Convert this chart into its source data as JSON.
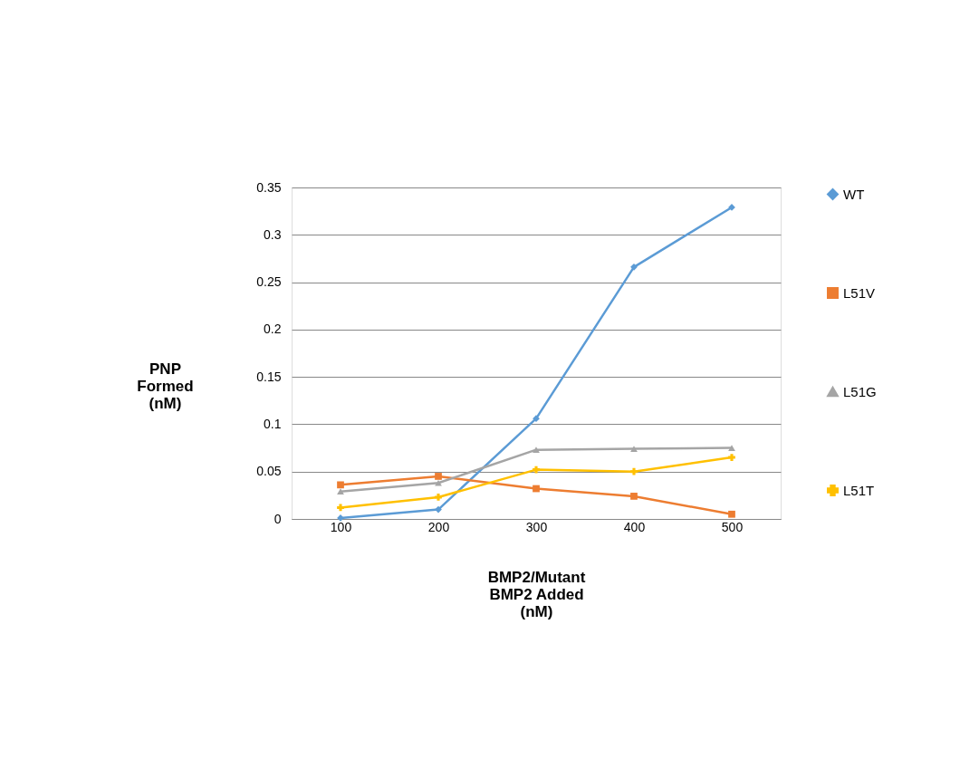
{
  "chart_data": {
    "type": "line",
    "xlabel": "BMP2/Mutant\nBMP2 Added\n(nM)",
    "ylabel": "PNP\nFormed\n(nM)",
    "categories": [
      "100",
      "200",
      "300",
      "400",
      "500"
    ],
    "series": [
      {
        "name": "WT",
        "color": "#5b9bd5",
        "marker": "diamond",
        "values": [
          0.001,
          0.01,
          0.106,
          0.266,
          0.329
        ]
      },
      {
        "name": "L51V",
        "color": "#ed7d31",
        "marker": "square",
        "values": [
          0.036,
          0.045,
          0.032,
          0.024,
          0.005
        ]
      },
      {
        "name": "L51G",
        "color": "#a5a5a5",
        "marker": "triangle",
        "values": [
          0.029,
          0.038,
          0.073,
          0.074,
          0.075
        ]
      },
      {
        "name": "L51T",
        "color": "#ffc000",
        "marker": "cross",
        "values": [
          0.012,
          0.023,
          0.052,
          0.05,
          0.065
        ]
      }
    ],
    "ylim": [
      0,
      0.35
    ],
    "yticks": [
      0,
      0.05,
      0.1,
      0.15,
      0.2,
      0.25,
      0.3,
      0.35
    ],
    "grid": "y",
    "legend": "right",
    "line_style": "solid"
  }
}
